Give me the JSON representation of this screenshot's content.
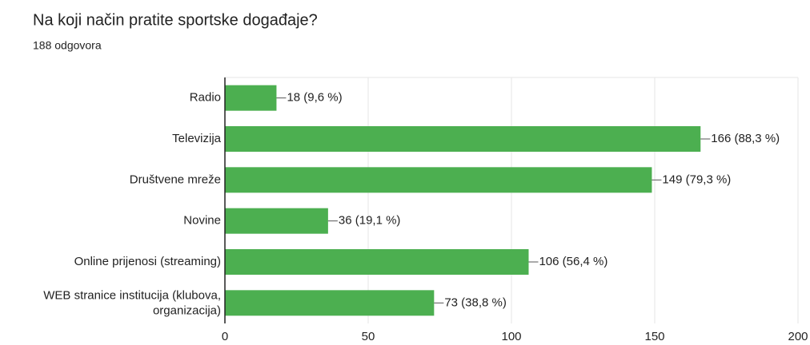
{
  "chart_data": {
    "type": "bar",
    "orientation": "horizontal",
    "title": "Na koji način pratite sportske događaje?",
    "subtitle": "188 odgovora",
    "categories": [
      "Radio",
      "Televizija",
      "Društvene mreže",
      "Novine",
      "Online prijenosi (streaming)",
      "WEB stranice institucija (klubova, organizacija)"
    ],
    "values": [
      18,
      166,
      149,
      36,
      106,
      73
    ],
    "value_labels": [
      "18 (9,6 %)",
      "166 (88,3 %)",
      "149 (79,3 %)",
      "36 (19,1 %)",
      "106 (56,4 %)",
      "73 (38,8 %)"
    ],
    "color": "#4caf50",
    "xlim": [
      0,
      200
    ],
    "xticks": [
      0,
      50,
      100,
      150,
      200
    ],
    "grid": true
  }
}
